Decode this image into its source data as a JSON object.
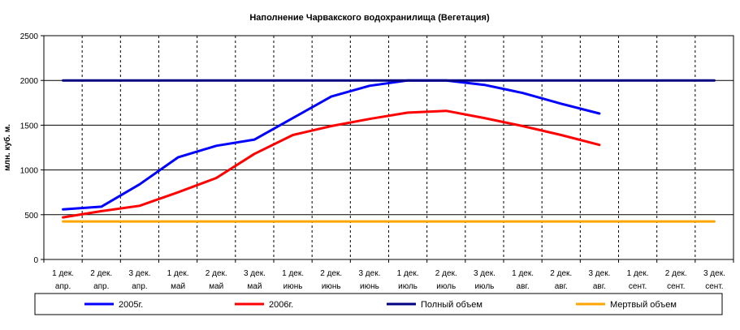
{
  "chart_data": {
    "type": "line",
    "title": "Наполнение Чарвакского водохранилища  (Вегетация)",
    "ylabel": "млн. куб. м.",
    "xlabel": "",
    "ylim": [
      0,
      2500
    ],
    "yticks": [
      0,
      500,
      1000,
      1500,
      2000,
      2500
    ],
    "grid": {
      "horizontal": "solid",
      "vertical": "dashed"
    },
    "legend_position": "bottom",
    "categories": [
      {
        "line1": "1 дек.",
        "line2": "апр."
      },
      {
        "line1": "2 дек.",
        "line2": "апр."
      },
      {
        "line1": "3 дек.",
        "line2": "апр."
      },
      {
        "line1": "1 дек.",
        "line2": "май"
      },
      {
        "line1": "2 дек.",
        "line2": "май"
      },
      {
        "line1": "3 дек.",
        "line2": "май"
      },
      {
        "line1": "1 дек.",
        "line2": "июнь"
      },
      {
        "line1": "2 дек.",
        "line2": "июнь"
      },
      {
        "line1": "3 дек.",
        "line2": "июнь"
      },
      {
        "line1": "1 дек.",
        "line2": "июль"
      },
      {
        "line1": "2 дек.",
        "line2": "июль"
      },
      {
        "line1": "3 дек.",
        "line2": "июль"
      },
      {
        "line1": "1 дек.",
        "line2": "авг."
      },
      {
        "line1": "2 дек.",
        "line2": "авг."
      },
      {
        "line1": "3 дек.",
        "line2": "авг."
      },
      {
        "line1": "1 дек.",
        "line2": "сент."
      },
      {
        "line1": "2 дек.",
        "line2": "сент."
      },
      {
        "line1": "3 дек.",
        "line2": "сент."
      }
    ],
    "series": [
      {
        "name": "2005г.",
        "color": "#0000ff",
        "values": [
          560,
          590,
          840,
          1140,
          1270,
          1340,
          1580,
          1820,
          1940,
          2000,
          2000,
          1950,
          1860,
          1740,
          1630,
          null,
          null,
          null
        ]
      },
      {
        "name": "2006г.",
        "color": "#ff0000",
        "values": [
          470,
          540,
          600,
          750,
          910,
          1180,
          1390,
          1490,
          1570,
          1640,
          1660,
          1580,
          1490,
          1390,
          1280,
          null,
          null,
          null
        ]
      },
      {
        "name": "Полный объем",
        "color": "#000080",
        "values": [
          2000,
          2000,
          2000,
          2000,
          2000,
          2000,
          2000,
          2000,
          2000,
          2000,
          2000,
          2000,
          2000,
          2000,
          2000,
          2000,
          2000,
          2000
        ]
      },
      {
        "name": "Мертвый объем",
        "color": "#ffa500",
        "values": [
          425,
          425,
          425,
          425,
          425,
          425,
          425,
          425,
          425,
          425,
          425,
          425,
          425,
          425,
          425,
          425,
          425,
          425
        ]
      }
    ]
  }
}
